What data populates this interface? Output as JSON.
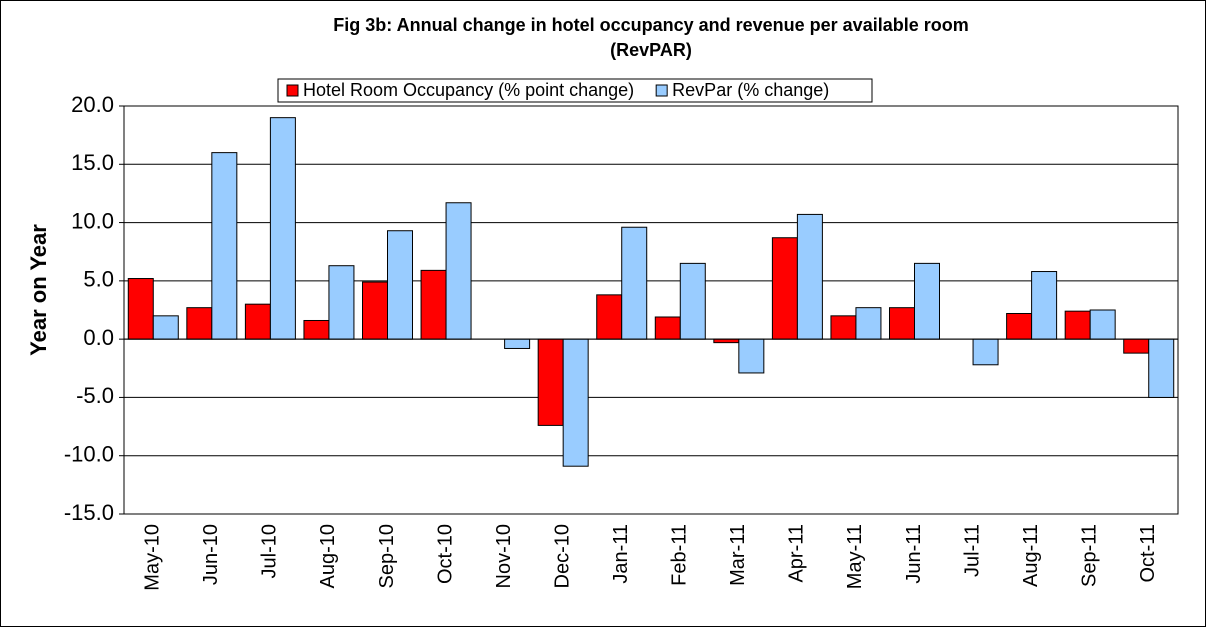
{
  "chart_data": {
    "type": "bar",
    "title": [
      "Fig 3b: Annual change in hotel occupancy and revenue per available room",
      "(RevPAR)"
    ],
    "y_label": "Year on Year",
    "categories": [
      "May-10",
      "Jun-10",
      "Jul-10",
      "Aug-10",
      "Sep-10",
      "Oct-10",
      "Nov-10",
      "Dec-10",
      "Jan-11",
      "Feb-11",
      "Mar-11",
      "Apr-11",
      "May-11",
      "Jun-11",
      "Jul-11",
      "Aug-11",
      "Sep-11",
      "Oct-11"
    ],
    "series": [
      {
        "name": "Hotel Room Occupancy (% point change)",
        "color": "#ff0000",
        "values": [
          5.2,
          2.7,
          3.0,
          1.6,
          4.9,
          5.9,
          0,
          -7.4,
          3.8,
          1.9,
          -0.3,
          8.7,
          2.0,
          2.7,
          0,
          2.2,
          2.4,
          -1.2
        ]
      },
      {
        "name": "RevPar (% change)",
        "color": "#99ccff",
        "values": [
          2.0,
          16.0,
          19.0,
          6.3,
          9.3,
          11.7,
          -0.8,
          -10.9,
          9.6,
          6.5,
          -2.9,
          10.7,
          2.7,
          6.5,
          -2.2,
          5.8,
          2.5,
          -5.0
        ]
      }
    ],
    "ylim": [
      -15,
      20
    ],
    "yticks": [
      {
        "value": -15,
        "label": "-15.0"
      },
      {
        "value": -10,
        "label": "-10.0"
      },
      {
        "value": -5,
        "label": "-5.0"
      },
      {
        "value": 0,
        "label": "0.0"
      },
      {
        "value": 5,
        "label": "5.0"
      },
      {
        "value": 10,
        "label": "10.0"
      },
      {
        "value": 15,
        "label": "15.0"
      },
      {
        "value": 20,
        "label": "20.0"
      }
    ],
    "grid": true,
    "legend": "top"
  }
}
